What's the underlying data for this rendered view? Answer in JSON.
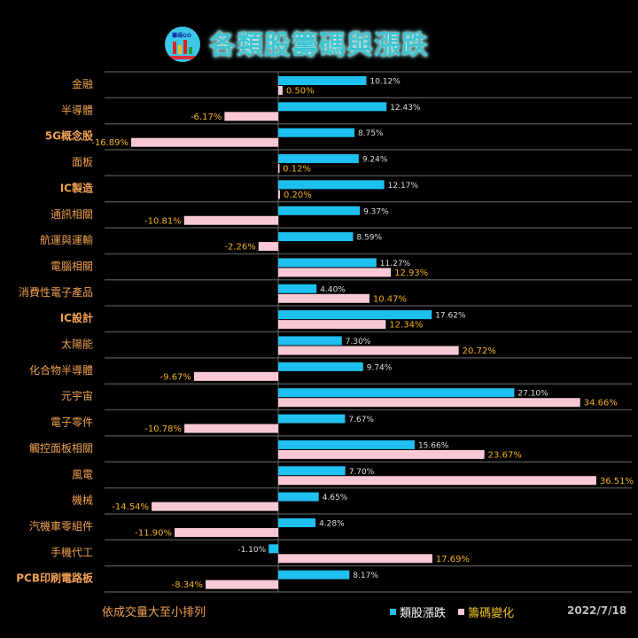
{
  "header": {
    "title": "各類股籌碼與漲跌",
    "logo_text": "籌碼GO"
  },
  "footer": {
    "note": "依成交量大至小排列",
    "date": "2022/7/18"
  },
  "colors": {
    "sector": "#1ec0f0",
    "chip": "#f8c8d4",
    "label": "#f0a050",
    "chip_label": "#f0b020"
  },
  "chart_data": {
    "type": "bar",
    "orientation": "horizontal",
    "categories": [
      "金融",
      "半導體",
      "5G概念股",
      "面板",
      "IC製造",
      "通訊相關",
      "航運與運輸",
      "電腦相關",
      "消費性電子產品",
      "IC設計",
      "太陽能",
      "化合物半導體",
      "元宇宙",
      "電子零件",
      "觸控面板相關",
      "風電",
      "機械",
      "汽機車零組件",
      "手機代工",
      "PCB印刷電路板"
    ],
    "series": [
      {
        "name": "類股漲跌",
        "color": "#1ec0f0",
        "values": [
          10.12,
          12.43,
          8.75,
          9.24,
          12.17,
          9.37,
          8.59,
          11.27,
          4.4,
          17.62,
          7.3,
          9.74,
          27.1,
          7.67,
          15.66,
          7.7,
          4.65,
          4.28,
          -1.1,
          8.17
        ]
      },
      {
        "name": "籌碼變化",
        "color": "#f8c8d4",
        "values": [
          0.5,
          -6.17,
          -16.89,
          0.12,
          0.2,
          -10.81,
          -2.26,
          12.93,
          10.47,
          12.34,
          20.72,
          -9.67,
          34.66,
          -10.78,
          23.67,
          36.51,
          -14.54,
          -11.9,
          17.69,
          -8.34
        ]
      }
    ],
    "unit": "%",
    "xlim": [
      -20,
      40
    ],
    "grid": true,
    "legend": "bottom-right"
  }
}
